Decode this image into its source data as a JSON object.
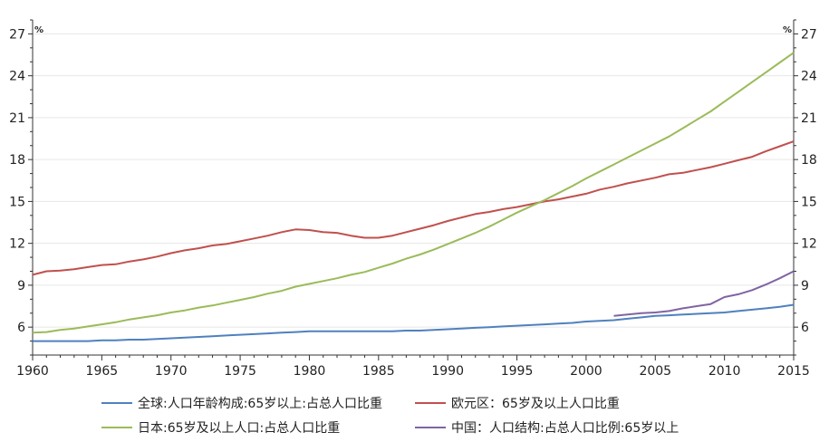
{
  "chart_data": {
    "type": "line",
    "title": "",
    "xlabel": "",
    "ylabel": "",
    "y_unit_left": "%",
    "y_unit_right": "%",
    "xlim": [
      1960,
      2015
    ],
    "ylim": [
      4,
      28
    ],
    "x_ticks": [
      1960,
      1965,
      1970,
      1975,
      1980,
      1985,
      1990,
      1995,
      2000,
      2005,
      2010,
      2015
    ],
    "y_ticks": [
      6,
      9,
      12,
      15,
      18,
      21,
      24,
      27
    ],
    "grid": "horizontal",
    "legend_position": "bottom",
    "series": [
      {
        "name": "全球:人口年龄构成:65岁以上:占总人口比重",
        "color": "#4f81bd",
        "x": [
          1960,
          1961,
          1962,
          1963,
          1964,
          1965,
          1966,
          1967,
          1968,
          1969,
          1970,
          1971,
          1972,
          1973,
          1974,
          1975,
          1976,
          1977,
          1978,
          1979,
          1980,
          1981,
          1982,
          1983,
          1984,
          1985,
          1986,
          1987,
          1988,
          1989,
          1990,
          1991,
          1992,
          1993,
          1994,
          1995,
          1996,
          1997,
          1998,
          1999,
          2000,
          2001,
          2002,
          2003,
          2004,
          2005,
          2006,
          2007,
          2008,
          2009,
          2010,
          2011,
          2012,
          2013,
          2014,
          2015
        ],
        "y": [
          5.0,
          5.0,
          5.0,
          5.0,
          5.0,
          5.05,
          5.05,
          5.1,
          5.1,
          5.15,
          5.2,
          5.25,
          5.3,
          5.35,
          5.4,
          5.45,
          5.5,
          5.55,
          5.6,
          5.65,
          5.7,
          5.7,
          5.7,
          5.7,
          5.7,
          5.7,
          5.7,
          5.75,
          5.75,
          5.8,
          5.85,
          5.9,
          5.95,
          6.0,
          6.05,
          6.1,
          6.15,
          6.2,
          6.25,
          6.3,
          6.4,
          6.45,
          6.5,
          6.6,
          6.7,
          6.8,
          6.85,
          6.9,
          6.95,
          7.0,
          7.05,
          7.15,
          7.25,
          7.35,
          7.45,
          7.6
        ]
      },
      {
        "name": "欧元区：65岁及以上人口比重",
        "color": "#c0504d",
        "x": [
          1960,
          1961,
          1962,
          1963,
          1964,
          1965,
          1966,
          1967,
          1968,
          1969,
          1970,
          1971,
          1972,
          1973,
          1974,
          1975,
          1976,
          1977,
          1978,
          1979,
          1980,
          1981,
          1982,
          1983,
          1984,
          1985,
          1986,
          1987,
          1988,
          1989,
          1990,
          1991,
          1992,
          1993,
          1994,
          1995,
          1996,
          1997,
          1998,
          1999,
          2000,
          2001,
          2002,
          2003,
          2004,
          2005,
          2006,
          2007,
          2008,
          2009,
          2010,
          2011,
          2012,
          2013,
          2014,
          2015
        ],
        "y": [
          9.75,
          10.0,
          10.05,
          10.15,
          10.3,
          10.45,
          10.5,
          10.7,
          10.85,
          11.05,
          11.3,
          11.5,
          11.65,
          11.85,
          11.95,
          12.15,
          12.35,
          12.55,
          12.8,
          13.0,
          12.95,
          12.8,
          12.75,
          12.55,
          12.4,
          12.4,
          12.55,
          12.8,
          13.05,
          13.3,
          13.6,
          13.85,
          14.1,
          14.25,
          14.45,
          14.6,
          14.8,
          15.0,
          15.15,
          15.35,
          15.55,
          15.85,
          16.05,
          16.3,
          16.5,
          16.7,
          16.95,
          17.05,
          17.25,
          17.45,
          17.7,
          17.95,
          18.2,
          18.6,
          18.95,
          19.3
        ]
      },
      {
        "name": "日本:65岁及以上人口:占总人口比重",
        "color": "#9bbb59",
        "x": [
          1960,
          1961,
          1962,
          1963,
          1964,
          1965,
          1966,
          1967,
          1968,
          1969,
          1970,
          1971,
          1972,
          1973,
          1974,
          1975,
          1976,
          1977,
          1978,
          1979,
          1980,
          1981,
          1982,
          1983,
          1984,
          1985,
          1986,
          1987,
          1988,
          1989,
          1990,
          1991,
          1992,
          1993,
          1994,
          1995,
          1996,
          1997,
          1998,
          1999,
          2000,
          2001,
          2002,
          2003,
          2004,
          2005,
          2006,
          2007,
          2008,
          2009,
          2010,
          2011,
          2012,
          2013,
          2014,
          2015
        ],
        "y": [
          5.6,
          5.65,
          5.8,
          5.9,
          6.05,
          6.2,
          6.35,
          6.55,
          6.7,
          6.85,
          7.05,
          7.2,
          7.4,
          7.55,
          7.75,
          7.95,
          8.15,
          8.4,
          8.6,
          8.9,
          9.1,
          9.3,
          9.5,
          9.75,
          9.95,
          10.25,
          10.55,
          10.9,
          11.2,
          11.55,
          11.95,
          12.35,
          12.75,
          13.2,
          13.7,
          14.2,
          14.65,
          15.1,
          15.6,
          16.1,
          16.65,
          17.15,
          17.65,
          18.15,
          18.65,
          19.15,
          19.65,
          20.25,
          20.85,
          21.45,
          22.15,
          22.85,
          23.55,
          24.25,
          24.95,
          25.65
        ]
      },
      {
        "name": "中国：人口结构:占总人口比例:65岁以上",
        "color": "#8064a2",
        "x": [
          2002,
          2003,
          2004,
          2005,
          2006,
          2007,
          2008,
          2009,
          2010,
          2011,
          2012,
          2013,
          2014,
          2015
        ],
        "y": [
          6.8,
          6.9,
          7.0,
          7.05,
          7.15,
          7.35,
          7.5,
          7.65,
          8.15,
          8.35,
          8.65,
          9.05,
          9.5,
          10.0
        ]
      }
    ]
  }
}
